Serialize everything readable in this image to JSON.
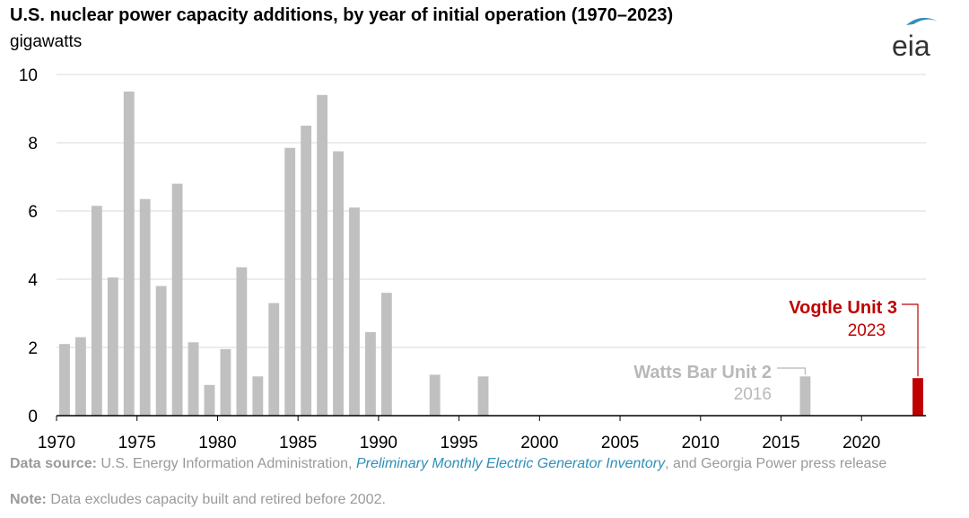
{
  "header": {
    "title": "U.S. nuclear power capacity additions, by year of initial operation (1970–2023)",
    "subtitle": "gigawatts",
    "logo_text": "eia"
  },
  "chart_data": {
    "type": "bar",
    "title": "U.S. nuclear power capacity additions, by year of initial operation (1970–2023)",
    "ylabel": "gigawatts",
    "xlabel": "",
    "xlim": [
      1970,
      2023
    ],
    "ylim": [
      0,
      10
    ],
    "yticks": [
      0,
      2,
      4,
      6,
      8,
      10
    ],
    "xticks": [
      1970,
      1975,
      1980,
      1985,
      1990,
      1995,
      2000,
      2005,
      2010,
      2015,
      2020
    ],
    "grid": true,
    "legend": "none",
    "bars": [
      {
        "year": 1970,
        "value": 2.1
      },
      {
        "year": 1971,
        "value": 2.3
      },
      {
        "year": 1972,
        "value": 6.15
      },
      {
        "year": 1973,
        "value": 4.05
      },
      {
        "year": 1974,
        "value": 9.5
      },
      {
        "year": 1975,
        "value": 6.35
      },
      {
        "year": 1976,
        "value": 3.8
      },
      {
        "year": 1977,
        "value": 6.8
      },
      {
        "year": 1978,
        "value": 2.15
      },
      {
        "year": 1979,
        "value": 0.9
      },
      {
        "year": 1980,
        "value": 1.95
      },
      {
        "year": 1981,
        "value": 4.35
      },
      {
        "year": 1982,
        "value": 1.15
      },
      {
        "year": 1983,
        "value": 3.3
      },
      {
        "year": 1984,
        "value": 7.85
      },
      {
        "year": 1985,
        "value": 8.5
      },
      {
        "year": 1986,
        "value": 9.4
      },
      {
        "year": 1987,
        "value": 7.75
      },
      {
        "year": 1988,
        "value": 6.1
      },
      {
        "year": 1989,
        "value": 2.45
      },
      {
        "year": 1990,
        "value": 3.6
      },
      {
        "year": 1993,
        "value": 1.2
      },
      {
        "year": 1996,
        "value": 1.15
      },
      {
        "year": 2016,
        "value": 1.15
      },
      {
        "year": 2023,
        "value": 1.1,
        "highlight": true
      }
    ],
    "annotations": [
      {
        "name": "Watts Bar Unit 2",
        "year_label": "2016",
        "bar_year": 2016
      },
      {
        "name": "Vogtle Unit 3",
        "year_label": "2023",
        "bar_year": 2023
      }
    ],
    "colors": {
      "bar": "#c0c0c0",
      "highlight": "#c00000",
      "grid": "#d9d9d9",
      "annotation_gray": "#b8b8b8",
      "axis": "#000000"
    }
  },
  "footer": {
    "source_label": "Data source:",
    "source_text_1": "U.S. Energy Information Administration,",
    "source_link": "Preliminary Monthly Electric Generator Inventory",
    "source_text_2": ", and Georgia Power press release",
    "note_label": "Note:",
    "note_text": "Data excludes capacity built and retired before 2002."
  }
}
